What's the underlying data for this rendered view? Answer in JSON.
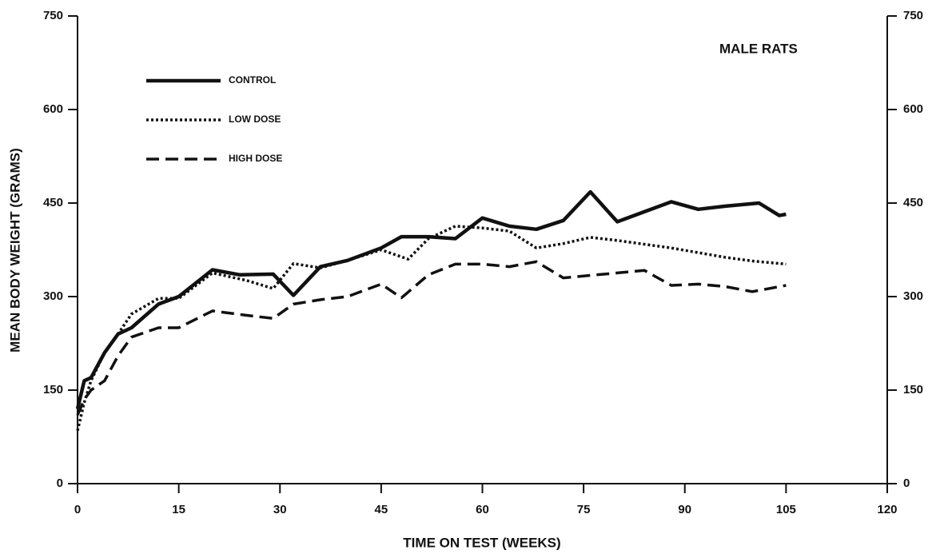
{
  "chart_data": {
    "type": "line",
    "annotation": "MALE RATS",
    "xlabel": "TIME ON TEST (WEEKS)",
    "ylabel": "MEAN BODY WEIGHT (GRAMS)",
    "xlim": [
      0,
      120
    ],
    "xticks": [
      0,
      15,
      30,
      45,
      60,
      75,
      90,
      105,
      120
    ],
    "ylim": [
      0,
      750
    ],
    "yticks": [
      0,
      150,
      300,
      450,
      600,
      750
    ],
    "y2lim": [
      0,
      750
    ],
    "y2ticks": [
      0,
      150,
      300,
      450,
      600,
      750
    ],
    "series": [
      {
        "name": "CONTROL",
        "color": "#111111",
        "style": "solid",
        "x": [
          0,
          1,
          2,
          4,
          6,
          8,
          12,
          15,
          20,
          24,
          29,
          32,
          36,
          40,
          45,
          48,
          52,
          56,
          60,
          64,
          68,
          72,
          76,
          80,
          84,
          88,
          92,
          96,
          101,
          104,
          105
        ],
        "values": [
          120,
          165,
          170,
          210,
          240,
          250,
          288,
          300,
          343,
          335,
          336,
          302,
          348,
          358,
          378,
          396,
          396,
          393,
          426,
          413,
          408,
          422,
          468,
          420,
          436,
          452,
          440,
          445,
          450,
          430,
          432
        ]
      },
      {
        "name": "LOW DOSE",
        "color": "#111111",
        "style": "dotted",
        "x": [
          0,
          1,
          2,
          4,
          6,
          8,
          12,
          15,
          20,
          25,
          29,
          32,
          36,
          40,
          45,
          49,
          52,
          56,
          60,
          64,
          68,
          72,
          76,
          80,
          88,
          96,
          100,
          105
        ],
        "values": [
          85,
          130,
          165,
          210,
          240,
          272,
          297,
          297,
          338,
          326,
          313,
          353,
          346,
          358,
          375,
          360,
          393,
          413,
          410,
          405,
          378,
          385,
          395,
          390,
          378,
          363,
          357,
          352
        ]
      },
      {
        "name": "HIGH DOSE",
        "color": "#111111",
        "style": "dashed",
        "x": [
          0,
          1,
          2,
          4,
          6,
          8,
          12,
          15,
          20,
          25,
          29,
          32,
          36,
          40,
          45,
          48,
          52,
          56,
          60,
          64,
          68,
          72,
          76,
          80,
          84,
          88,
          92,
          96,
          100,
          105
        ],
        "values": [
          110,
          135,
          150,
          165,
          205,
          235,
          250,
          250,
          277,
          270,
          265,
          288,
          295,
          300,
          320,
          298,
          335,
          352,
          352,
          348,
          356,
          330,
          334,
          338,
          342,
          318,
          320,
          316,
          308,
          318
        ]
      }
    ]
  }
}
